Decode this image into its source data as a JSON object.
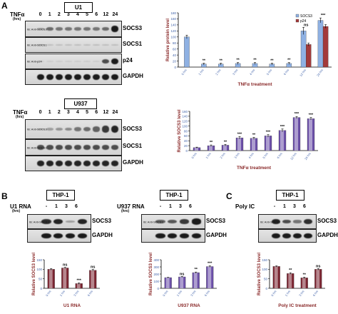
{
  "panels": {
    "A": "A",
    "B": "B",
    "C": "C"
  },
  "blots": [
    {
      "id": "u1",
      "cell_line": "U1",
      "treatment_label": "TNFα",
      "unit_label": "(hrs)",
      "lanes": [
        "0",
        "1",
        "2",
        "3",
        "4",
        "5",
        "6",
        "12",
        "24"
      ],
      "rows": [
        {
          "ib": "IB: Anti-SOCS3",
          "name": "SOCS3",
          "intensity": [
            0.25,
            0.55,
            0.5,
            0.5,
            0.5,
            0.5,
            0.5,
            0.55,
            0.95
          ]
        },
        {
          "ib": "IB: Anti-SOCS1",
          "name": "SOCS1",
          "intensity": [
            0.15,
            0.15,
            0.15,
            0.15,
            0.15,
            0.15,
            0.15,
            0.15,
            0.15
          ]
        },
        {
          "ib": "IB: Anti-p24",
          "name": "p24",
          "intensity": [
            0.05,
            0.05,
            0.05,
            0.05,
            0.05,
            0.05,
            0.05,
            0.7,
            0.95
          ]
        },
        {
          "ib": "",
          "name": "GAPDH",
          "intensity": [
            0.95,
            0.95,
            0.95,
            0.95,
            0.95,
            0.95,
            0.95,
            0.95,
            0.95
          ]
        }
      ]
    },
    {
      "id": "u937",
      "cell_line": "U937",
      "treatment_label": "TNFα",
      "unit_label": "(hrs)",
      "lanes": [
        "0",
        "1",
        "2",
        "3",
        "4",
        "5",
        "6",
        "12",
        "24"
      ],
      "rows": [
        {
          "ib": "IB: Anti-SOCS3",
          "name": "SOCS3",
          "intensity": [
            0.2,
            0.3,
            0.35,
            0.4,
            0.5,
            0.55,
            0.6,
            0.8,
            0.9
          ]
        },
        {
          "ib": "IB: Anti-SOCS1",
          "name": "SOCS1",
          "intensity": [
            0.7,
            0.7,
            0.7,
            0.7,
            0.7,
            0.7,
            0.7,
            0.7,
            0.7
          ]
        },
        {
          "ib": "",
          "name": "GAPDH",
          "intensity": [
            0.9,
            0.9,
            0.9,
            0.9,
            0.9,
            0.9,
            0.9,
            0.9,
            0.9
          ]
        }
      ]
    },
    {
      "id": "b1",
      "cell_line": "THP-1",
      "treatment_label": "U1 RNA",
      "unit_label": "(hrs)",
      "lanes": [
        "-",
        "1",
        "3",
        "6"
      ],
      "rows": [
        {
          "ib": "IB: Anti-SOCS3",
          "name": "SOCS3",
          "intensity": [
            0.85,
            0.9,
            0.3,
            0.9
          ]
        },
        {
          "ib": "",
          "name": "GAPDH",
          "intensity": [
            0.95,
            0.95,
            0.95,
            0.95
          ]
        }
      ]
    },
    {
      "id": "b2",
      "cell_line": "THP-1",
      "treatment_label": "U937 RNA",
      "unit_label": "(hrs)",
      "lanes": [
        "-",
        "1",
        "3",
        "6"
      ],
      "rows": [
        {
          "ib": "IB: Anti-SOCS3",
          "name": "SOCS3",
          "intensity": [
            0.6,
            0.65,
            0.8,
            0.95
          ]
        },
        {
          "ib": "",
          "name": "GAPDH",
          "intensity": [
            0.95,
            0.95,
            0.95,
            0.95
          ]
        }
      ]
    },
    {
      "id": "c1",
      "cell_line": "THP-1",
      "treatment_label": "Poly IC",
      "unit_label": "",
      "lanes": [
        "-",
        "1",
        "3",
        "6"
      ],
      "rows": [
        {
          "ib": "IB: Anti-SOCS3",
          "name": "SOCS3",
          "intensity": [
            0.9,
            0.7,
            0.5,
            0.85
          ]
        },
        {
          "ib": "",
          "name": "GAPDH",
          "intensity": [
            0.95,
            0.95,
            0.95,
            0.95
          ]
        }
      ]
    }
  ],
  "colors": {
    "blue_bar": "#8fb1e3",
    "red_bar": "#a33b3b",
    "purple_bar": "#6b4fa8",
    "maroon_bar": "#7a2430",
    "axis_title": "#8a2a2a",
    "tick_label": "#3c5fa8"
  },
  "chart_data": [
    {
      "id": "chartA1",
      "type": "bar",
      "categories": [
        "0 hrs",
        "1 hrs",
        "2 hrs",
        "3 hrs",
        "4 hrs",
        "5 hrs",
        "6 hrs",
        "12 hrs",
        "24 hrs"
      ],
      "series": [
        {
          "name": "SOCS3",
          "values": [
            100,
            10,
            10,
            12,
            12,
            10,
            12,
            120,
            155
          ],
          "errors": [
            6,
            3,
            3,
            3,
            3,
            3,
            3,
            12,
            8
          ]
        },
        {
          "name": "p24",
          "values": [
            null,
            null,
            null,
            null,
            null,
            null,
            null,
            75,
            135
          ],
          "errors": [
            null,
            null,
            null,
            null,
            null,
            null,
            null,
            5,
            6
          ]
        }
      ],
      "annotations": [
        "",
        "**",
        "**",
        "**",
        "**",
        "**",
        "**",
        "ns",
        "***"
      ],
      "xlabel": "TNFα treatment",
      "ylabel": "Relative protein level",
      "ylim": [
        0,
        180
      ],
      "yticks": [
        0,
        20,
        40,
        60,
        80,
        100,
        120,
        140,
        160,
        180
      ],
      "legend": "top-right"
    },
    {
      "id": "chartA2",
      "type": "bar",
      "categories": [
        "0 hrs",
        "1 hrs",
        "2 hrs",
        "3 hrs",
        "4 hrs",
        "5 hrs",
        "6 hrs",
        "12 hrs",
        "24 hrs"
      ],
      "values": [
        12,
        20,
        22,
        52,
        50,
        60,
        82,
        135,
        130
      ],
      "errors": [
        2,
        3,
        3,
        5,
        4,
        5,
        6,
        4,
        5
      ],
      "annotations": [
        "",
        "**",
        "**",
        "***",
        "**",
        "***",
        "***",
        "***",
        "***"
      ],
      "xlabel": "TNFα treatment",
      "ylabel": "Relative SOCS3 level",
      "ylim": [
        0,
        160
      ],
      "yticks": [
        0,
        20,
        40,
        60,
        80,
        100,
        120,
        140,
        160
      ]
    },
    {
      "id": "chartB1",
      "type": "bar",
      "categories": [
        "0 hrs",
        "1 hrs",
        "3 hrs",
        "6 hrs"
      ],
      "values": [
        100,
        107,
        25,
        95
      ],
      "errors": [
        4,
        3,
        4,
        4
      ],
      "annotations": [
        "",
        "ns",
        "***",
        "ns"
      ],
      "xlabel": "U1 RNA",
      "ylabel": "Relative SOCS3 level",
      "ylim": [
        0,
        150
      ],
      "yticks": [
        0,
        50,
        100,
        150
      ]
    },
    {
      "id": "chartB2",
      "type": "bar",
      "categories": [
        "0 hrs",
        "1 hrs",
        "3 hrs",
        "6 hrs"
      ],
      "values": [
        150,
        160,
        220,
        305
      ],
      "errors": [
        5,
        6,
        8,
        10
      ],
      "annotations": [
        "",
        "ns",
        "**",
        "***"
      ],
      "xlabel": "U937 RNA",
      "ylabel": "Relative SOCS3 level",
      "ylim": [
        0,
        400
      ],
      "yticks": [
        0,
        100,
        200,
        300,
        400
      ]
    },
    {
      "id": "chartC1",
      "type": "bar",
      "categories": [
        "0 hrs",
        "1 hrs",
        "3 hrs",
        "6 hrs"
      ],
      "values": [
        115,
        78,
        55,
        100
      ],
      "errors": [
        3,
        4,
        4,
        4
      ],
      "annotations": [
        "",
        "**",
        "**",
        "ns"
      ],
      "xlabel": "Poly IC treatment",
      "ylabel": "Relative SOCS3 level",
      "ylim": [
        0,
        150
      ],
      "yticks": [
        0,
        50,
        100,
        150
      ]
    }
  ]
}
